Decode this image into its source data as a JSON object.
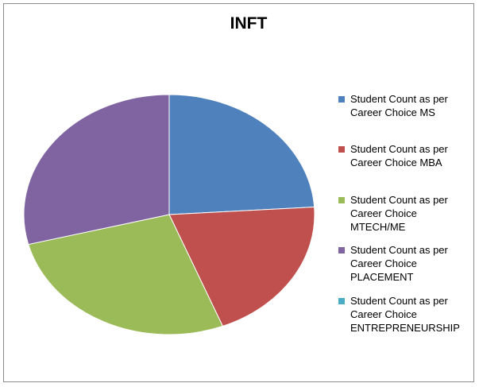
{
  "chart_data": {
    "type": "pie",
    "title": "INFT",
    "categories": [
      "Student Count as per Career Choice  MS",
      "Student Count as per Career Choice  MBA",
      "Student Count as per Career Choice  MTECH/ME",
      "Student Count as per Career Choice  PLACEMENT",
      "Student Count as per Career Choice  ENTREPRENEURSHIP"
    ],
    "values": [
      24,
      20,
      27,
      29,
      0
    ],
    "colors": [
      "#4f81bd",
      "#c0504d",
      "#9bbb59",
      "#8064a2",
      "#4bacc6"
    ],
    "legend": "right"
  }
}
